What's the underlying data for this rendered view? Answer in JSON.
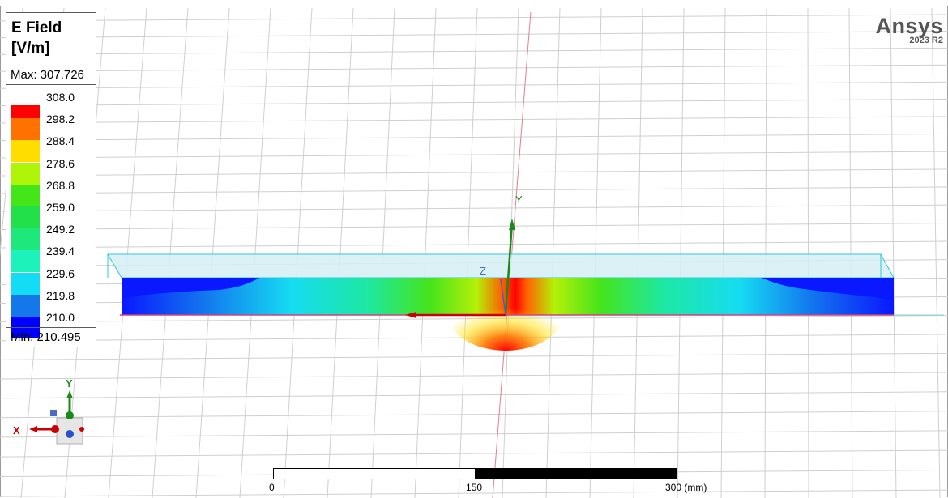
{
  "legend": {
    "title": "E Field",
    "unit": "[V/m]",
    "max": "Max: 307.726",
    "min": "Min: 210.495",
    "levels": [
      {
        "value": "308.0",
        "color": "#ff0000"
      },
      {
        "value": "298.2",
        "color": "#ff7200"
      },
      {
        "value": "288.4",
        "color": "#ffdd00"
      },
      {
        "value": "278.6",
        "color": "#aef50a"
      },
      {
        "value": "268.8",
        "color": "#45e619"
      },
      {
        "value": "259.0",
        "color": "#22e04a"
      },
      {
        "value": "249.2",
        "color": "#1ee87c"
      },
      {
        "value": "239.4",
        "color": "#1cf2b9"
      },
      {
        "value": "229.6",
        "color": "#14dcf4"
      },
      {
        "value": "219.8",
        "color": "#1478ea"
      },
      {
        "value": "210.0",
        "color": "#0000ff"
      }
    ]
  },
  "brand": {
    "name": "Ansys",
    "version": "2023 R2"
  },
  "axes": {
    "y_label": "Y",
    "z_label": "Z",
    "triad_x": "X",
    "triad_y": "Y",
    "triad_z": "Z"
  },
  "scale_bar": {
    "tick0": "0",
    "tick1": "150",
    "tick2": "300 (mm)"
  }
}
